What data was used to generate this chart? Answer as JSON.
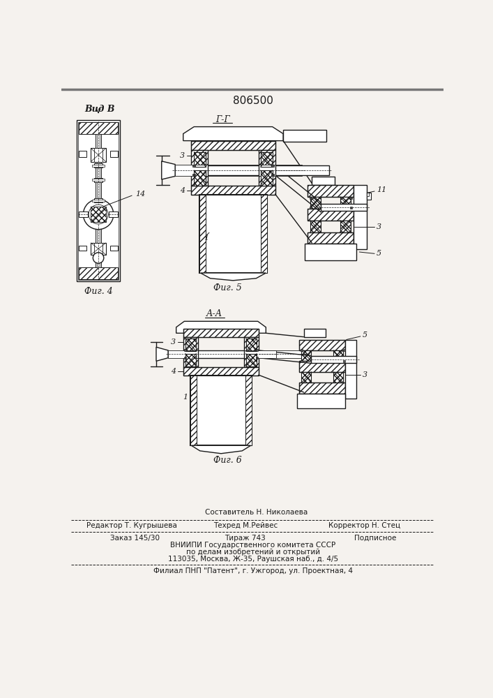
{
  "patent_number": "806500",
  "bg_color": "#f5f2ee",
  "drawing_color": "#1a1a1a",
  "label_vid_b": "Вид В",
  "label_fig4": "Фиг. 4",
  "label_fig5": "Фиг. 5",
  "label_fig6": "Фиг. 6",
  "label_gg": "Г-Г",
  "label_aa": "А-А",
  "footer_составитель": "Составитель Н. Николаева",
  "footer_редактор": "Редактор Т. Кугрышева",
  "footer_техред": "Техред М.Рейвес",
  "footer_корректор": "Корректор Н. Стец",
  "footer_заказ": "Заказ 145/30",
  "footer_тираж": "Тираж 743",
  "footer_подписное": "Подписное",
  "footer_вниипи": "ВНИИПИ Государственного комитета СССР",
  "footer_делам": "по делам изобретений и открытий",
  "footer_адрес": "113035, Москва, Ж-35, Раушская наб., д. 4/5",
  "footer_филиал": "Филиал ПНП \"Патент\", г. Ужгород, ул. Проектная, 4"
}
